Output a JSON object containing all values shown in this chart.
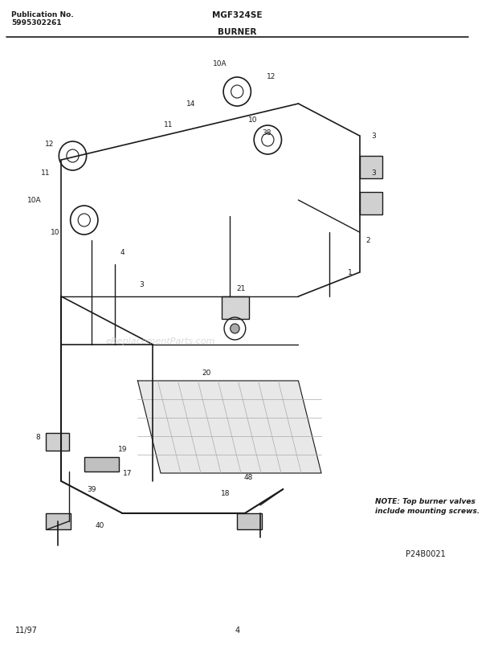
{
  "title_model": "MGF324SE",
  "title_section": "BURNER",
  "pub_no_label": "Publication No.",
  "pub_no": "5995302261",
  "page_num": "4",
  "date": "11/97",
  "diagram_id": "P24B0021",
  "note_text": "NOTE: Top burner valves\ninclude mounting screws.",
  "bg_color": "#ffffff",
  "line_color": "#1a1a1a",
  "diagram_color": "#2a2a2a"
}
